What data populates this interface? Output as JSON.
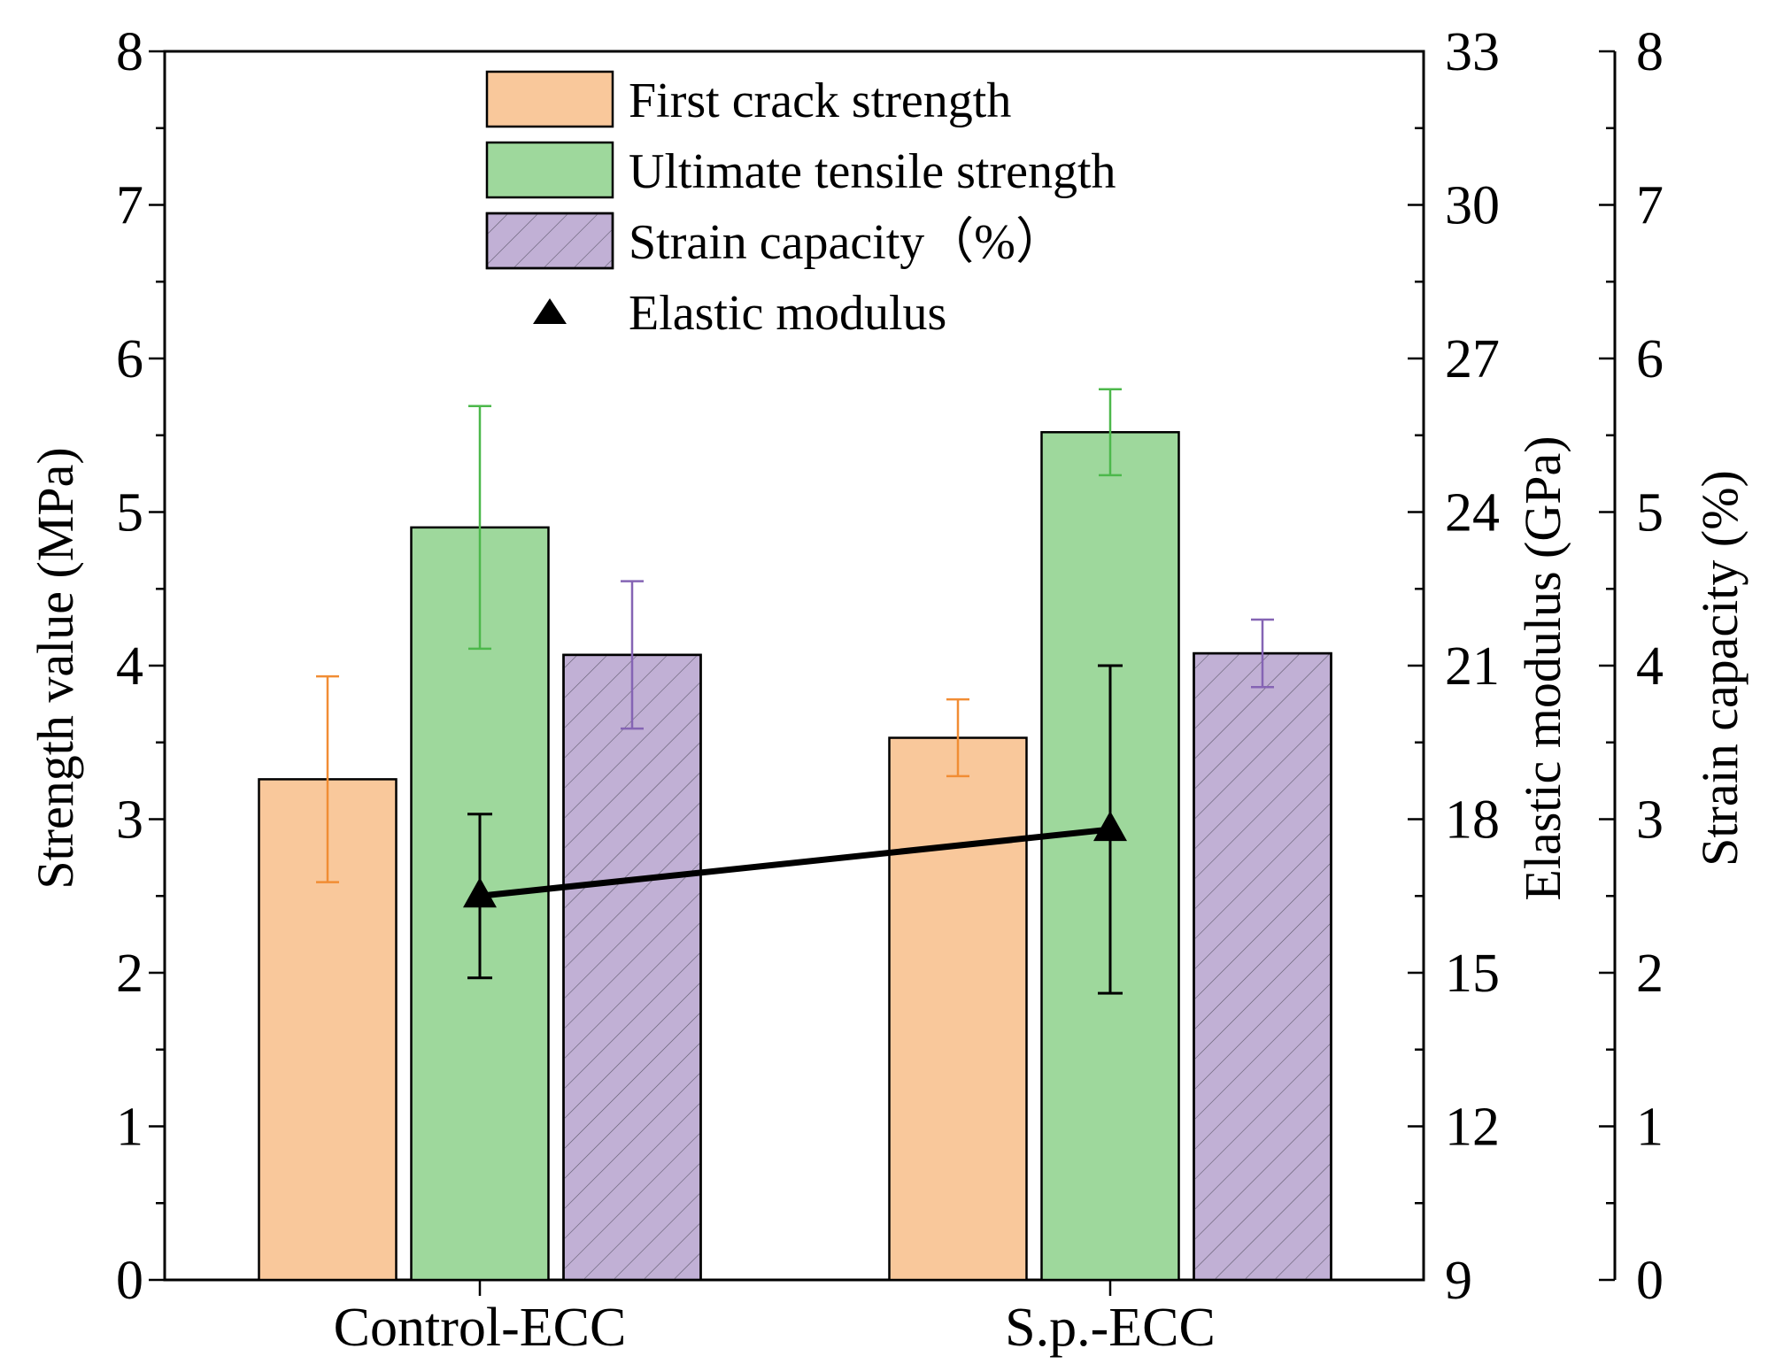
{
  "chart_data": {
    "type": "bar",
    "categories": [
      "Control-ECC",
      "S.p.-ECC"
    ],
    "series": [
      {
        "name": "First crack strength",
        "axis": "left",
        "color": "#f9c89b",
        "values": [
          3.26,
          3.53
        ],
        "errors": [
          0.67,
          0.25
        ],
        "error_color": "#f18d34"
      },
      {
        "name": "Ultimate tensile strength",
        "axis": "left",
        "color": "#9ed89c",
        "values": [
          4.9,
          5.52
        ],
        "errors": [
          0.79,
          0.28
        ],
        "error_color": "#4cb84b"
      },
      {
        "name": "Strain capacity（%）",
        "axis": "strain",
        "color": "#c1b0d5",
        "hatch": true,
        "values": [
          4.07,
          4.08
        ],
        "errors": [
          0.48,
          0.22
        ],
        "error_color": "#8564b4"
      }
    ],
    "line_series": {
      "name": "Elastic modulus",
      "axis": "right",
      "marker": "triangle",
      "color": "#000000",
      "values": [
        16.5,
        17.8
      ],
      "errors": [
        1.6,
        3.2
      ]
    },
    "axes": {
      "left": {
        "title": "Strength value (MPa)",
        "ylim": [
          0,
          8
        ],
        "ticks": [
          "0",
          "1",
          "2",
          "3",
          "4",
          "5",
          "6",
          "7",
          "8"
        ]
      },
      "right": {
        "title": "Elastic modulus (GPa)",
        "ylim": [
          9,
          33
        ],
        "ticks": [
          "9",
          "12",
          "15",
          "18",
          "21",
          "24",
          "27",
          "30",
          "33"
        ]
      },
      "strain": {
        "title": "Strain capacity (%)",
        "ylim": [
          0,
          8
        ],
        "ticks": [
          "0",
          "1",
          "2",
          "3",
          "4",
          "5",
          "6",
          "7",
          "8"
        ]
      }
    },
    "legend": {
      "position": "top-center",
      "entries": [
        "First crack strength",
        "Ultimate tensile strength",
        "Strain capacity（%）",
        "Elastic modulus"
      ]
    },
    "grid": false
  }
}
